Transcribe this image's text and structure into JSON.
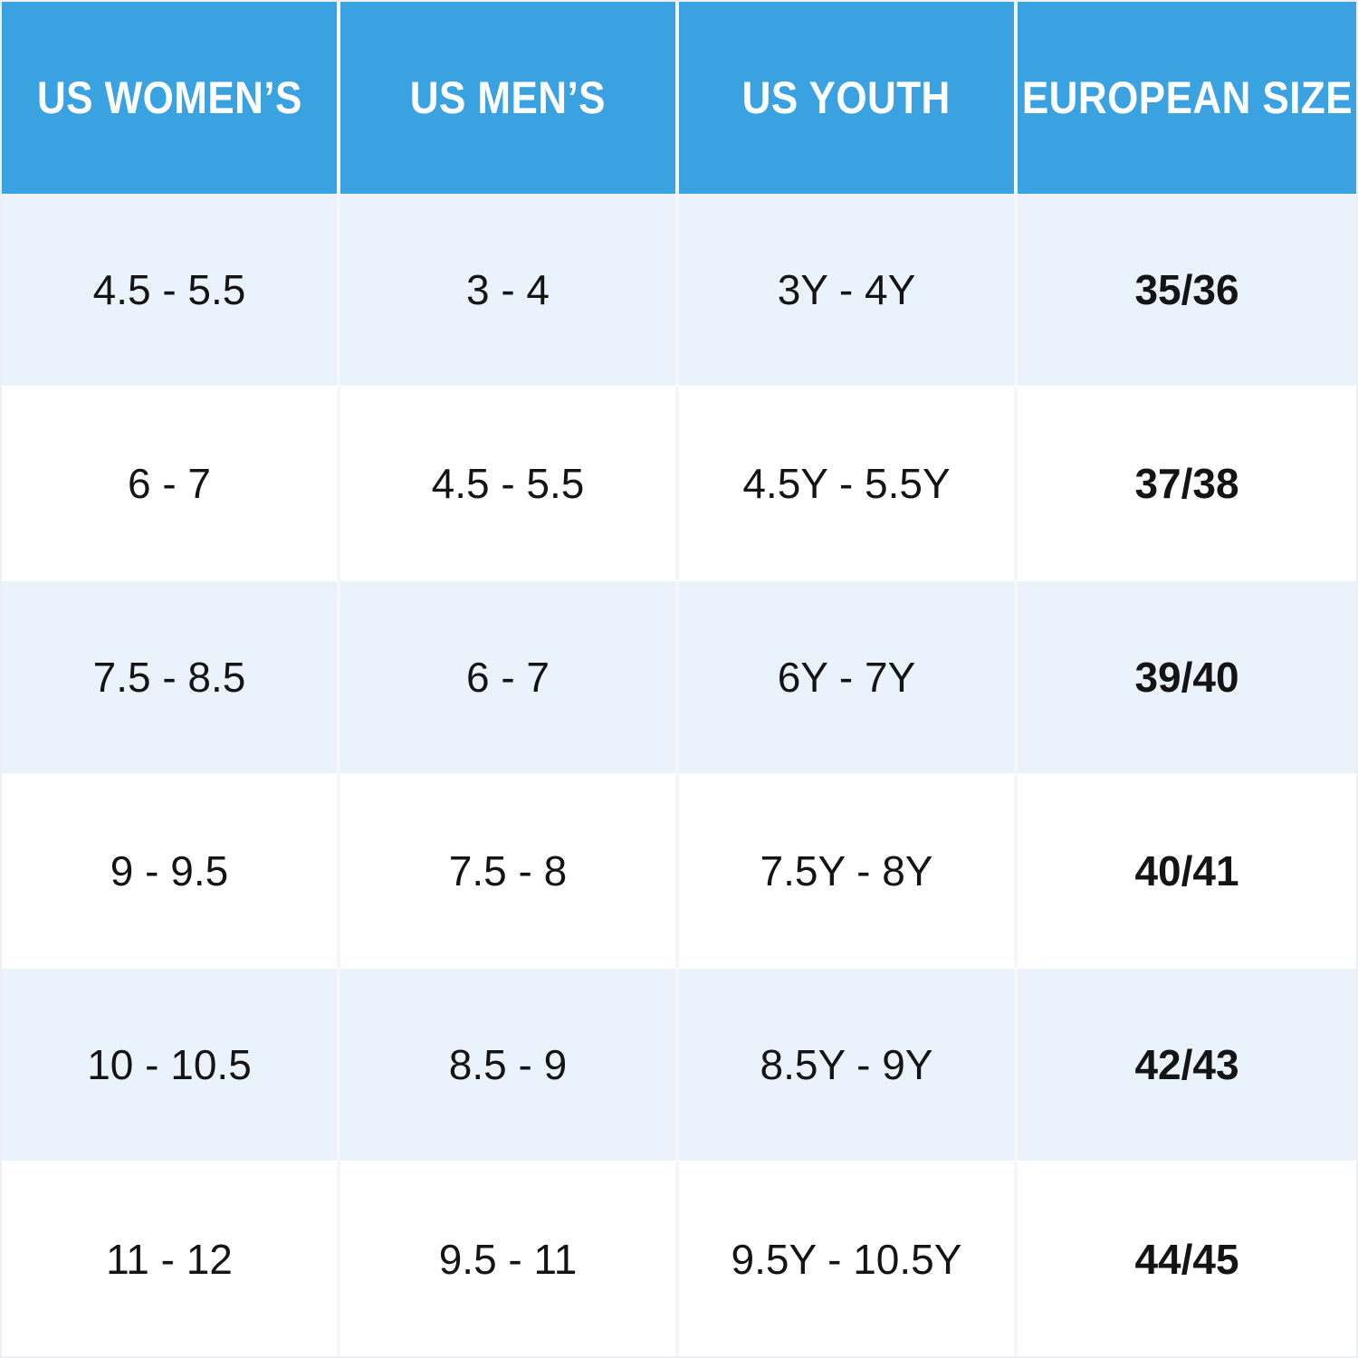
{
  "chart_data": {
    "type": "table",
    "columns": [
      "US WOMEN’S",
      "US MEN’S",
      "US YOUTH",
      "EUROPEAN SIZE"
    ],
    "rows": [
      [
        "4.5 - 5.5",
        "3 - 4",
        "3Y - 4Y",
        "35/36"
      ],
      [
        "6 - 7",
        "4.5 - 5.5",
        "4.5Y - 5.5Y",
        "37/38"
      ],
      [
        "7.5 - 8.5",
        "6 - 7",
        "6Y - 7Y",
        "39/40"
      ],
      [
        "9 - 9.5",
        "7.5 - 8",
        "7.5Y - 8Y",
        "40/41"
      ],
      [
        "10 - 10.5",
        "8.5 - 9",
        "8.5Y - 9Y",
        "42/43"
      ],
      [
        "11 - 12",
        "9.5 - 11",
        "9.5Y - 10.5Y",
        "44/45"
      ]
    ],
    "layout": {
      "header_row": true,
      "alternating_rows": true,
      "bold_column": "EUROPEAN SIZE"
    },
    "colors": {
      "header_bg": "#3ba2e1",
      "header_text": "#ffffff",
      "row_alt_bg": "#eaf3fb",
      "row_bg": "#ffffff",
      "cell_text": "#141414",
      "divider": "#f4f6fa"
    }
  }
}
